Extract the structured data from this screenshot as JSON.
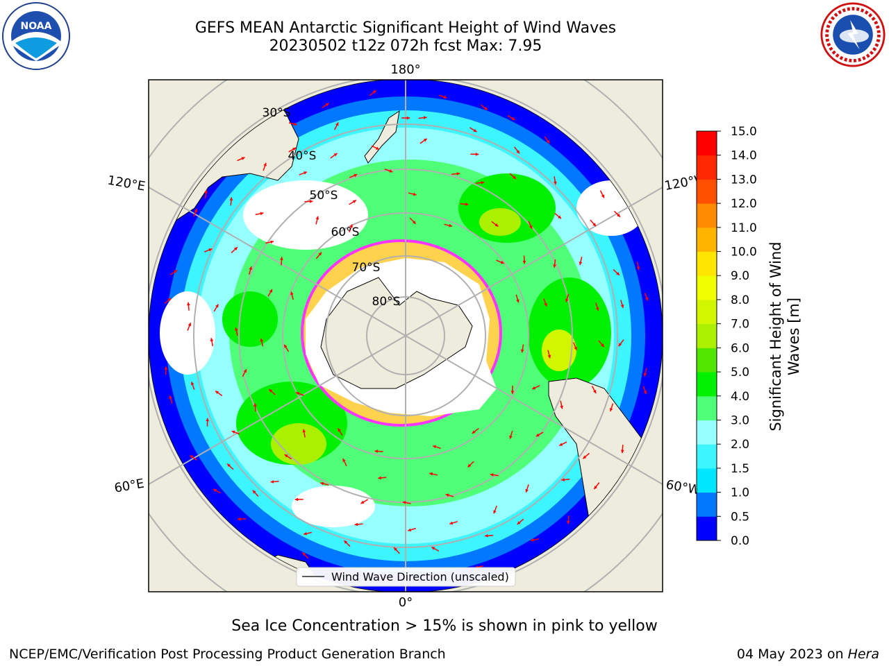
{
  "title": {
    "line1": "GEFS MEAN Antarctic Significant Height of Wind Waves",
    "line2": "20230502 t12z 072h fcst   Max: 7.95"
  },
  "map": {
    "longitude_labels": {
      "top": "180°",
      "bottom": "0°",
      "upper_left": "120°E",
      "lower_left": "60°E",
      "upper_right": "120°W",
      "lower_right": "60°W"
    },
    "latitude_labels": [
      "30°S",
      "40°S",
      "50°S",
      "60°S",
      "70°S",
      "80°S"
    ],
    "legend_label": "Wind Wave Direction (unscaled)",
    "arrow_color": "#ff0000",
    "land_color": "#eeecdc",
    "sea_ice_colors": [
      "#ff33ff",
      "#ffd24d"
    ]
  },
  "colorbar": {
    "label": "Significant Height of Wind Waves [m]",
    "ticks": [
      "0.0",
      "0.5",
      "1.0",
      "1.5",
      "2.0",
      "3.0",
      "4.0",
      "5.0",
      "6.0",
      "7.0",
      "8.0",
      "9.0",
      "10.0",
      "11.0",
      "12.0",
      "13.0",
      "14.0",
      "15.0"
    ],
    "colors": [
      "#0000ff",
      "#0078ff",
      "#00e6ff",
      "#3cf5ff",
      "#96ffff",
      "#50ff78",
      "#00f000",
      "#50e600",
      "#aaf000",
      "#d2f500",
      "#f0ff00",
      "#ffe600",
      "#ffb400",
      "#ff8c00",
      "#ff5000",
      "#ff2800",
      "#ff0000"
    ]
  },
  "notes": {
    "sea_ice": "Sea Ice Concentration > 15% is shown in pink to yellow",
    "credit": "NCEP/EMC/Verification Post Processing Product Generation Branch",
    "date": "04 May 2023 on",
    "machine": "Hera"
  }
}
